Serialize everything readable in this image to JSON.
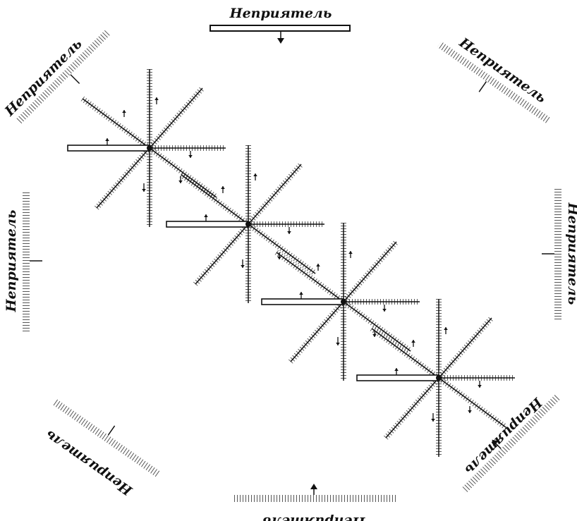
{
  "diagram": {
    "frame_labels": {
      "top": "Неприятель",
      "top_right": "Неприятель",
      "right": "Неприятель",
      "bottom_right": "Неприятель",
      "bottom": "Неприятель",
      "bottom_left": "Неприятель",
      "left": "Неприятель",
      "top_left": "Неприятель"
    },
    "group_count": 4
  }
}
